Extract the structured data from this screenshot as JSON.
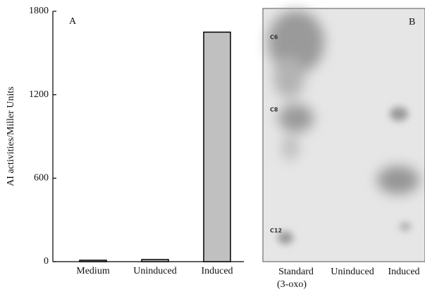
{
  "chart_data": {
    "type": "bar",
    "panel_label": "A",
    "ylabel": "AI activities/Miller Units",
    "categories": [
      "Medium",
      "Uninduced",
      "Induced"
    ],
    "values": [
      10,
      15,
      1650
    ],
    "color": "#c0c0c0",
    "ylim": [
      0,
      1800
    ],
    "yticks": [
      0,
      600,
      1200,
      1800
    ]
  },
  "panel_b": {
    "panel_label": "B",
    "spot_labels": [
      "C6",
      "C8",
      "C12"
    ],
    "lanes": [
      "Standard",
      "Uninduced",
      "Induced"
    ],
    "lane_note": "(3-oxo)"
  }
}
